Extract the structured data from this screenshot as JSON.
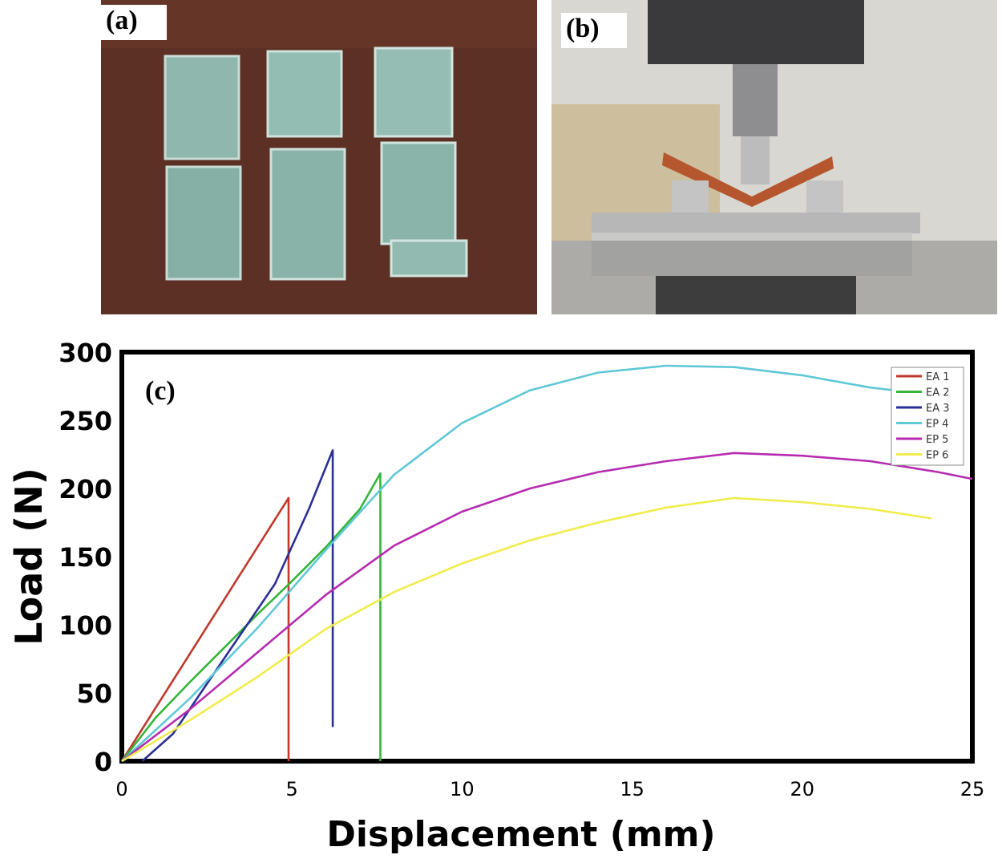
{
  "panels": {
    "a": {
      "label": "(a)"
    },
    "b": {
      "label": "(b)"
    },
    "c": {
      "label": "(c)"
    }
  },
  "chart_data": {
    "type": "line",
    "title": "",
    "xlabel": "Displacement (mm)",
    "ylabel": "Load (N)",
    "xlim": [
      0,
      25
    ],
    "ylim": [
      0,
      300
    ],
    "xticks": [
      "0",
      "5",
      "10",
      "15",
      "20",
      "25"
    ],
    "yticks": [
      "0",
      "50",
      "100",
      "150",
      "200",
      "250",
      "300"
    ],
    "grid": false,
    "legend_position": "top-right",
    "series": [
      {
        "name": "EA 1",
        "color": "#c0392b",
        "x": [
          0,
          4.9,
          4.9
        ],
        "y": [
          0,
          193,
          0
        ]
      },
      {
        "name": "EA 2",
        "color": "#35b53a",
        "x": [
          0,
          1.0,
          2.0,
          3.0,
          4.0,
          5.0,
          6.0,
          7.0,
          7.6,
          7.6
        ],
        "y": [
          0,
          32,
          58,
          83,
          108,
          132,
          157,
          185,
          211,
          0
        ]
      },
      {
        "name": "EA 3",
        "color": "#2a2f96",
        "x": [
          0.6,
          1.5,
          3.0,
          4.5,
          5.5,
          6.2,
          6.2
        ],
        "y": [
          0,
          20,
          75,
          130,
          185,
          228,
          25
        ]
      },
      {
        "name": "EP 4",
        "color": "#5fc8d6",
        "x": [
          0,
          2,
          4,
          6,
          8,
          10,
          12,
          14,
          16,
          18,
          20,
          22,
          23.4
        ],
        "y": [
          0,
          46,
          98,
          155,
          210,
          248,
          272,
          285,
          290,
          289,
          283,
          274,
          270
        ]
      },
      {
        "name": "EP 5",
        "color": "#b62bb0",
        "x": [
          0,
          2,
          4,
          6,
          8,
          10,
          12,
          14,
          16,
          18,
          20,
          22,
          24,
          25
        ],
        "y": [
          0,
          38,
          80,
          122,
          158,
          183,
          200,
          212,
          220,
          226,
          224,
          220,
          212,
          207
        ]
      },
      {
        "name": "EP 6",
        "color": "#f0ec4c",
        "x": [
          0,
          2,
          4,
          6,
          8,
          10,
          12,
          14,
          16,
          18,
          20,
          22,
          23.8
        ],
        "y": [
          0,
          30,
          62,
          97,
          124,
          145,
          162,
          175,
          186,
          193,
          190,
          185,
          178
        ]
      }
    ]
  }
}
